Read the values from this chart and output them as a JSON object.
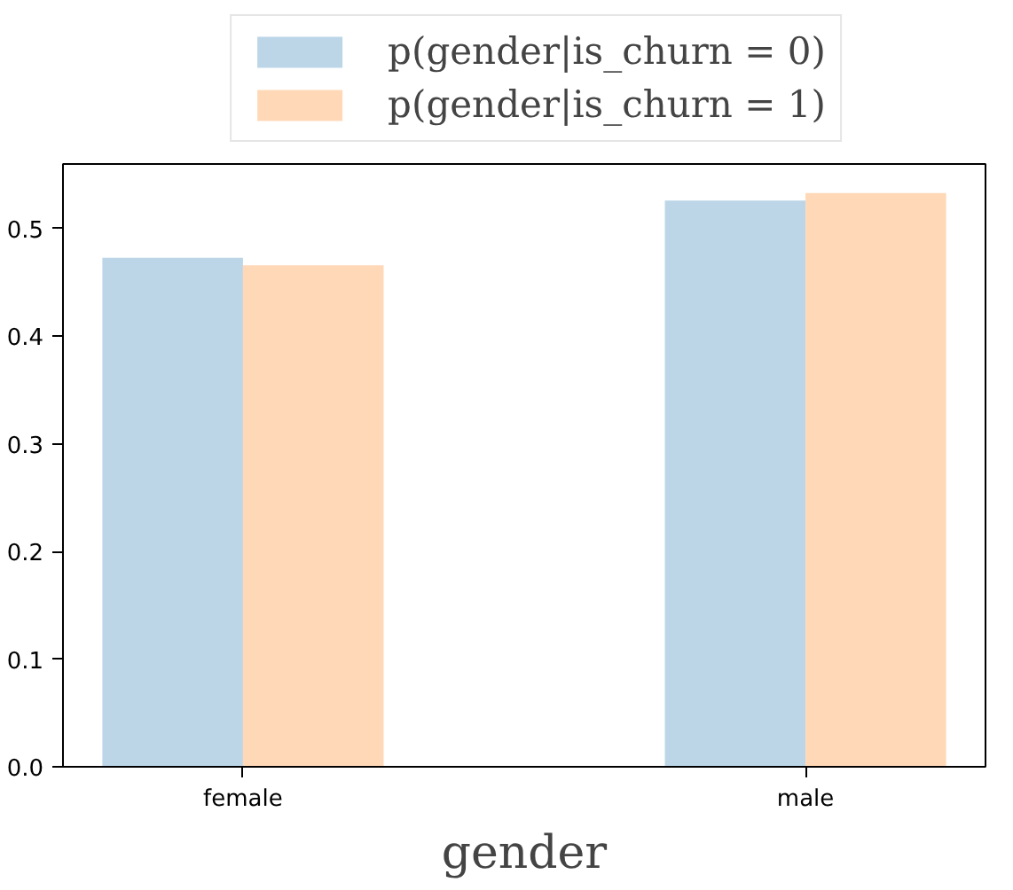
{
  "chart_data": {
    "type": "bar",
    "xlabel": "gender",
    "categories": [
      "female",
      "male"
    ],
    "series": [
      {
        "name": "p(gender|is_churn = 0)",
        "color": "#bcd6e8",
        "values": [
          0.473,
          0.526
        ]
      },
      {
        "name": "p(gender|is_churn = 1)",
        "color": "#ffd9b7",
        "values": [
          0.466,
          0.533
        ]
      }
    ],
    "ylim": [
      0,
      0.56
    ],
    "yticks": [
      {
        "value": 0,
        "label": "0.0"
      },
      0.1,
      0.2,
      0.3,
      0.4,
      0.5
    ],
    "grid": false,
    "legend": "top"
  }
}
